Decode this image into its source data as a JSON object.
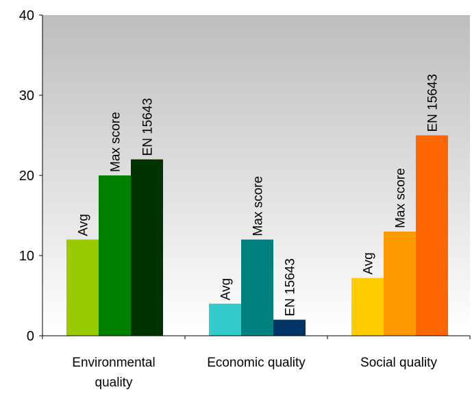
{
  "chart_data": {
    "type": "bar",
    "categories": [
      "Environmental quality",
      "Economic quality",
      "Social quality"
    ],
    "category_label_lines": [
      [
        "Environmental",
        "quality"
      ],
      [
        "Economic quality"
      ],
      [
        "Social quality"
      ]
    ],
    "bars": [
      [
        {
          "label": "Avg",
          "value": 12,
          "color": "#99cc00"
        },
        {
          "label": "Max score",
          "value": 20,
          "color": "#008000"
        },
        {
          "label": "EN 15643",
          "value": 22,
          "color": "#003300"
        }
      ],
      [
        {
          "label": "Avg",
          "value": 4,
          "color": "#33cccc"
        },
        {
          "label": "Max score",
          "value": 12,
          "color": "#008080"
        },
        {
          "label": "EN 15643",
          "value": 2,
          "color": "#003366"
        }
      ],
      [
        {
          "label": "Avg",
          "value": 7.2,
          "color": "#ffcc00"
        },
        {
          "label": "Max score",
          "value": 13,
          "color": "#ff9900"
        },
        {
          "label": "EN 15643",
          "value": 25,
          "color": "#ff6600"
        }
      ]
    ],
    "y_ticks": [
      "0",
      "10",
      "20",
      "30",
      "40"
    ],
    "ylim": [
      0,
      40
    ],
    "grid": false,
    "legend": "none",
    "background": "gray-gradient"
  }
}
